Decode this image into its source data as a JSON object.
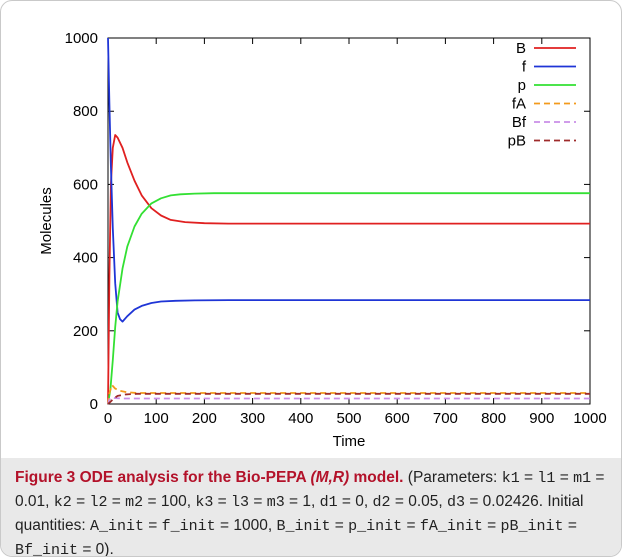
{
  "chart_data": {
    "type": "line",
    "title": "",
    "xlabel": "Time",
    "ylabel": "Molecules",
    "xlim": [
      0,
      1000
    ],
    "ylim": [
      0,
      1000
    ],
    "xticks": [
      "0",
      "100",
      "200",
      "300",
      "400",
      "500",
      "600",
      "700",
      "800",
      "900",
      "1000"
    ],
    "yticks": [
      "0",
      "200",
      "400",
      "600",
      "800",
      "1000"
    ],
    "grid": false,
    "legend_position": "top-right",
    "series": [
      {
        "name": "B",
        "color": "#e02020",
        "dash": false,
        "x": [
          0,
          3,
          6,
          10,
          15,
          20,
          30,
          40,
          55,
          70,
          90,
          110,
          130,
          160,
          200,
          250,
          300,
          1000
        ],
        "y": [
          0,
          350,
          600,
          700,
          735,
          728,
          700,
          660,
          610,
          570,
          535,
          515,
          503,
          497,
          494,
          493,
          493,
          493
        ]
      },
      {
        "name": "f",
        "color": "#1f35d6",
        "dash": false,
        "x": [
          0,
          3,
          6,
          10,
          15,
          20,
          25,
          30,
          40,
          55,
          70,
          90,
          110,
          140,
          180,
          250,
          300,
          1000
        ],
        "y": [
          1000,
          820,
          650,
          480,
          330,
          250,
          232,
          225,
          240,
          258,
          268,
          276,
          280,
          282,
          283,
          284,
          284,
          284
        ]
      },
      {
        "name": "p",
        "color": "#33e033",
        "dash": false,
        "x": [
          0,
          5,
          10,
          15,
          20,
          30,
          40,
          55,
          70,
          90,
          110,
          130,
          150,
          180,
          220,
          300,
          1000
        ],
        "y": [
          0,
          40,
          120,
          210,
          280,
          370,
          430,
          485,
          520,
          548,
          562,
          570,
          573,
          575,
          576,
          576,
          576
        ]
      },
      {
        "name": "fA",
        "color": "#f39a1c",
        "dash": true,
        "x": [
          0,
          3,
          8,
          15,
          25,
          40,
          60,
          100,
          1000
        ],
        "y": [
          0,
          30,
          52,
          42,
          36,
          32,
          30,
          30,
          30
        ]
      },
      {
        "name": "Bf",
        "color": "#c98ee8",
        "dash": true,
        "x": [
          0,
          3,
          8,
          15,
          30,
          60,
          100,
          1000
        ],
        "y": [
          0,
          12,
          18,
          16,
          15,
          15,
          15,
          15
        ]
      },
      {
        "name": "pB",
        "color": "#9e2a2a",
        "dash": true,
        "x": [
          0,
          5,
          12,
          20,
          35,
          60,
          100,
          1000
        ],
        "y": [
          0,
          6,
          15,
          22,
          26,
          28,
          28,
          28
        ]
      }
    ]
  },
  "caption": {
    "figure_label": "Figure 3",
    "title_pre": "ODE analysis for the Bio-PEPA",
    "title_model": "(M,R)",
    "title_post": "model.",
    "params_intro": "(Parameters:",
    "params": [
      {
        "code": "k1",
        "text": " = "
      },
      {
        "code": "l1",
        "text": " = "
      },
      {
        "code": "m1",
        "text": " = 0.01, "
      },
      {
        "code": "k2",
        "text": " = "
      },
      {
        "code": "l2",
        "text": " = "
      },
      {
        "code": "m2",
        "text": " = 100, "
      },
      {
        "code": "k3",
        "text": " = "
      },
      {
        "code": "l3",
        "text": " = "
      },
      {
        "code": "m3",
        "text": " = 1, "
      },
      {
        "code": "d1",
        "text": " = 0, "
      },
      {
        "code": "d2",
        "text": " = 0.05, "
      },
      {
        "code": "d3",
        "text": " = 0.02426. Initial quantities: "
      },
      {
        "code": "A_init",
        "text": " = "
      },
      {
        "code": "f_init",
        "text": " = 1000, "
      },
      {
        "code": "B_init",
        "text": " = "
      },
      {
        "code": "p_init",
        "text": " = "
      },
      {
        "code": "fA_init",
        "text": " = "
      },
      {
        "code": "pB_init",
        "text": " = "
      },
      {
        "code": "Bf_init",
        "text": " = 0)."
      }
    ]
  }
}
